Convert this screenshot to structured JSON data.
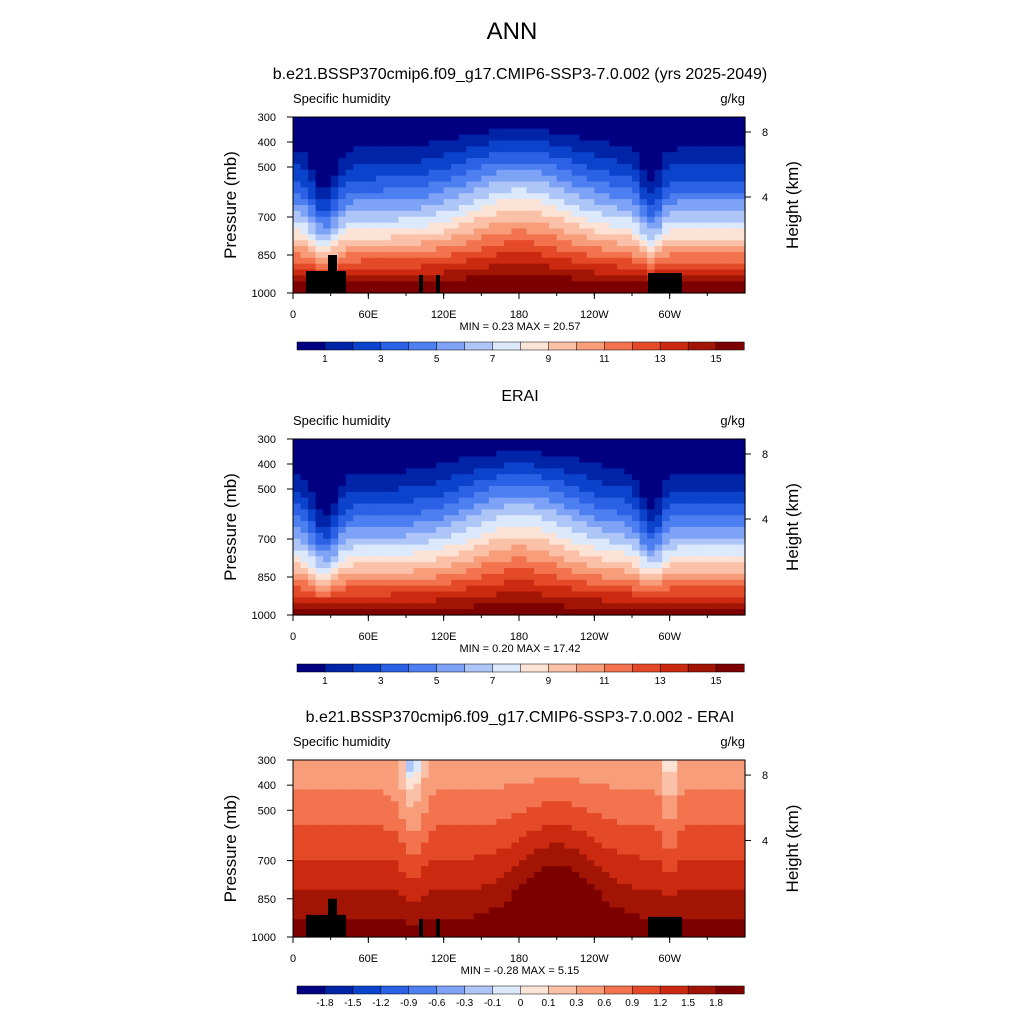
{
  "title": "ANN",
  "chart_data": [
    {
      "type": "heatmap",
      "title": "b.e21.BSSP370cmip6.f09_g17.CMIP6-SSP3-7.0.002 (yrs 2025-2049)",
      "left_label": "Specific humidity",
      "right_label": "g/kg",
      "ylabel": "Pressure (mb)",
      "ylabel_right": "Height (km)",
      "x_ticks": [
        "0",
        "60E",
        "120E",
        "180",
        "120W",
        "60W"
      ],
      "y_ticks": [
        "300",
        "400",
        "500",
        "700",
        "850",
        "1000"
      ],
      "y2_ticks": [
        "8",
        "4"
      ],
      "min_label": "MIN =",
      "min_value": "0.23",
      "max_label": "MAX =",
      "max_value": "20.57",
      "colorbar_labels": [
        "1",
        "3",
        "5",
        "7",
        "9",
        "11",
        "13",
        "15"
      ],
      "colors": [
        "#000081",
        "#0024a8",
        "#0b43cc",
        "#2b61e4",
        "#4d7ff0",
        "#7ea2f5",
        "#aec5f8",
        "#dce8fb",
        "#fde3d5",
        "#fbc1a8",
        "#f89d7a",
        "#f2734e",
        "#e54a28",
        "#cc2a10",
        "#a21505",
        "#7c0000"
      ]
    },
    {
      "type": "heatmap",
      "title": "ERAI",
      "left_label": "Specific humidity",
      "right_label": "g/kg",
      "ylabel": "Pressure (mb)",
      "ylabel_right": "Height (km)",
      "x_ticks": [
        "0",
        "60E",
        "120E",
        "180",
        "120W",
        "60W"
      ],
      "y_ticks": [
        "300",
        "400",
        "500",
        "700",
        "850",
        "1000"
      ],
      "y2_ticks": [
        "8",
        "4"
      ],
      "min_label": "MIN =",
      "min_value": "0.20",
      "max_label": "MAX =",
      "max_value": "17.42",
      "colorbar_labels": [
        "1",
        "3",
        "5",
        "7",
        "9",
        "11",
        "13",
        "15"
      ],
      "colors": [
        "#000081",
        "#0024a8",
        "#0b43cc",
        "#2b61e4",
        "#4d7ff0",
        "#7ea2f5",
        "#aec5f8",
        "#dce8fb",
        "#fde3d5",
        "#fbc1a8",
        "#f89d7a",
        "#f2734e",
        "#e54a28",
        "#cc2a10",
        "#a21505",
        "#7c0000"
      ]
    },
    {
      "type": "heatmap",
      "title": "b.e21.BSSP370cmip6.f09_g17.CMIP6-SSP3-7.0.002 - ERAI",
      "left_label": "Specific humidity",
      "right_label": "g/kg",
      "ylabel": "Pressure (mb)",
      "ylabel_right": "Height (km)",
      "x_ticks": [
        "0",
        "60E",
        "120E",
        "180",
        "120W",
        "60W"
      ],
      "y_ticks": [
        "300",
        "400",
        "500",
        "700",
        "850",
        "1000"
      ],
      "y2_ticks": [
        "8",
        "4"
      ],
      "min_label": "MIN =",
      "min_value": "-0.28",
      "max_label": "MAX =",
      "max_value": "5.15",
      "colorbar_labels": [
        "-1.8",
        "-1.5",
        "-1.2",
        "-0.9",
        "-0.6",
        "-0.3",
        "-0.1",
        "0",
        "0.1",
        "0.3",
        "0.6",
        "0.9",
        "1.2",
        "1.5",
        "1.8"
      ],
      "colors": [
        "#000081",
        "#0024a8",
        "#0b43cc",
        "#2b61e4",
        "#4d7ff0",
        "#7ea2f5",
        "#aec5f8",
        "#dce8fb",
        "#fde3d5",
        "#fbc1a8",
        "#f89d7a",
        "#f2734e",
        "#e54a28",
        "#cc2a10",
        "#a21505",
        "#7c0000"
      ]
    }
  ]
}
